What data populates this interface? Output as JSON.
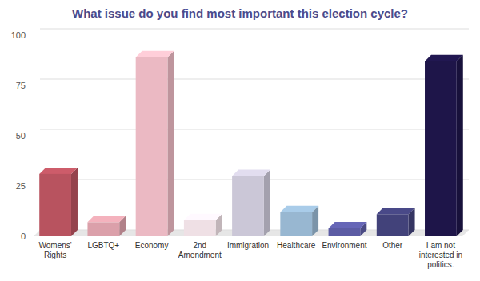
{
  "chart_data": {
    "type": "bar",
    "title": "What issue do you find most important this election cycle?",
    "categories": [
      "Womens' Rights",
      "LGBTQ+",
      "Economy",
      "2nd Amendment",
      "Immigration",
      "Healthcare",
      "Environment",
      "Other",
      "I am not interested in politics."
    ],
    "values": [
      31,
      7,
      89,
      8,
      30,
      12,
      4,
      11,
      87
    ],
    "colors": [
      "#b8535f",
      "#dba0aa",
      "#ebb9c3",
      "#efe0e5",
      "#cbc7d7",
      "#98b7d1",
      "#5c5ca4",
      "#42427a",
      "#1e1549"
    ],
    "ylim": [
      0,
      100
    ],
    "yticks": [
      0,
      25,
      50,
      75,
      100
    ],
    "grid": true
  }
}
